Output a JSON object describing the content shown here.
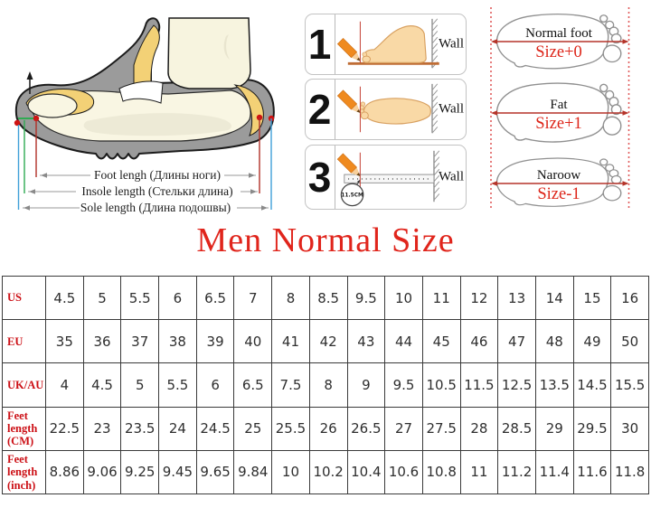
{
  "title": "Men Normal Size",
  "colors": {
    "title_red": "#e0251c",
    "table_label_red": "#cc1016",
    "size_label_red": "#dd2418",
    "measure_arrow_red": "#b5342a",
    "dotted_line_red": "#e05c5c",
    "shoe_gray": "#9b9b9b",
    "insole_yellow": "#f3d176",
    "foot_cream": "#f9f6e3",
    "skin_tan": "#f9d9a6",
    "pencil_orange": "#ef8a1f",
    "table_border_gray": "#3a3a3a"
  },
  "measurement_diagram": {
    "labels": [
      "Foot lengh (Длины ноги)",
      "Insole length (Стельки длина)",
      "Sole length (Длина подошвы)"
    ]
  },
  "steps": [
    {
      "number": "1",
      "wall_label": "Wall"
    },
    {
      "number": "2",
      "wall_label": "Wall"
    },
    {
      "number": "3",
      "wall_label": "Wall",
      "ruler_mark": "11.5CM"
    }
  ],
  "foot_types": [
    {
      "name": "Normal foot",
      "size": "Size+0"
    },
    {
      "name": "Fat",
      "size": "Size+1"
    },
    {
      "name": "Naroow",
      "size": "Size-1"
    }
  ],
  "size_table": {
    "rows": [
      {
        "label": "US",
        "values": [
          "4.5",
          "5",
          "5.5",
          "6",
          "6.5",
          "7",
          "8",
          "8.5",
          "9.5",
          "10",
          "11",
          "12",
          "13",
          "14",
          "15",
          "16"
        ]
      },
      {
        "label": "EU",
        "values": [
          "35",
          "36",
          "37",
          "38",
          "39",
          "40",
          "41",
          "42",
          "43",
          "44",
          "45",
          "46",
          "47",
          "48",
          "49",
          "50"
        ]
      },
      {
        "label": "UK/AU",
        "values": [
          "4",
          "4.5",
          "5",
          "5.5",
          "6",
          "6.5",
          "7.5",
          "8",
          "9",
          "9.5",
          "10.5",
          "11.5",
          "12.5",
          "13.5",
          "14.5",
          "15.5"
        ]
      },
      {
        "label": "Feet length (CM)",
        "values": [
          "22.5",
          "23",
          "23.5",
          "24",
          "24.5",
          "25",
          "25.5",
          "26",
          "26.5",
          "27",
          "27.5",
          "28",
          "28.5",
          "29",
          "29.5",
          "30"
        ]
      },
      {
        "label": "Feet length (inch)",
        "values": [
          "8.86",
          "9.06",
          "9.25",
          "9.45",
          "9.65",
          "9.84",
          "10",
          "10.2",
          "10.4",
          "10.6",
          "10.8",
          "11",
          "11.2",
          "11.4",
          "11.6",
          "11.8"
        ]
      }
    ]
  }
}
